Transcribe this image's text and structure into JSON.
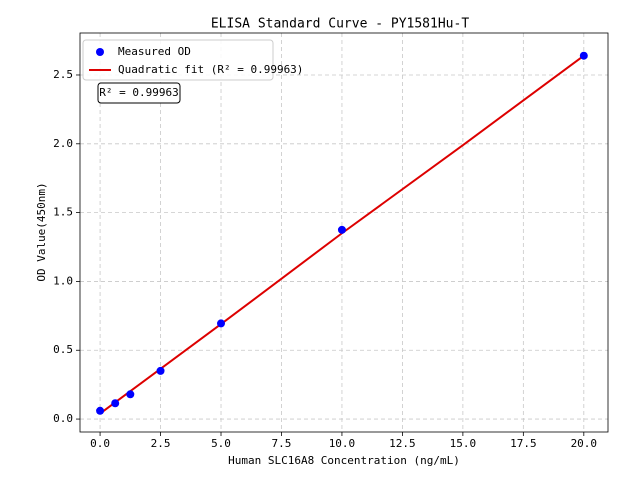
{
  "chart_data": {
    "type": "scatter",
    "title": "ELISA Standard Curve - PY1581Hu-T",
    "x_label": "Human SLC16A8 Concentration (ng/mL)",
    "y_label": "OD Value(450nm)",
    "annotation": "R² = 0.99963",
    "xlim": [
      -0.83,
      21.0
    ],
    "ylim": [
      -0.094,
      2.805
    ],
    "xticks": [
      {
        "value": 0,
        "label": "0.0"
      },
      2.5,
      {
        "value": 5,
        "label": "5.0"
      },
      7.5,
      {
        "value": 10,
        "label": "10.0"
      },
      12.5,
      {
        "value": 15,
        "label": "15.0"
      },
      17.5,
      {
        "value": 20,
        "label": "20.0"
      }
    ],
    "yticks": [
      {
        "value": 0,
        "label": "0.0"
      },
      0.5,
      {
        "value": 1,
        "label": "1.0"
      },
      1.5,
      {
        "value": 2,
        "label": "2.0"
      },
      2.5
    ],
    "grid": true,
    "legend": "upper left",
    "series": [
      {
        "name": "Measured OD",
        "type": "scatter",
        "color": "#0000ff",
        "x": [
          0,
          0.625,
          1.25,
          2.5,
          5,
          10,
          20
        ],
        "values": [
          0.06,
          0.115,
          0.18,
          0.35,
          0.695,
          1.375,
          2.64
        ]
      },
      {
        "name": "Quadratic fit (R² = 0.99963)",
        "type": "line",
        "color": "#dd0000",
        "x": [
          0,
          5,
          10,
          15,
          20
        ],
        "values": [
          0.04,
          0.69,
          1.35,
          1.99,
          2.64
        ]
      }
    ]
  }
}
